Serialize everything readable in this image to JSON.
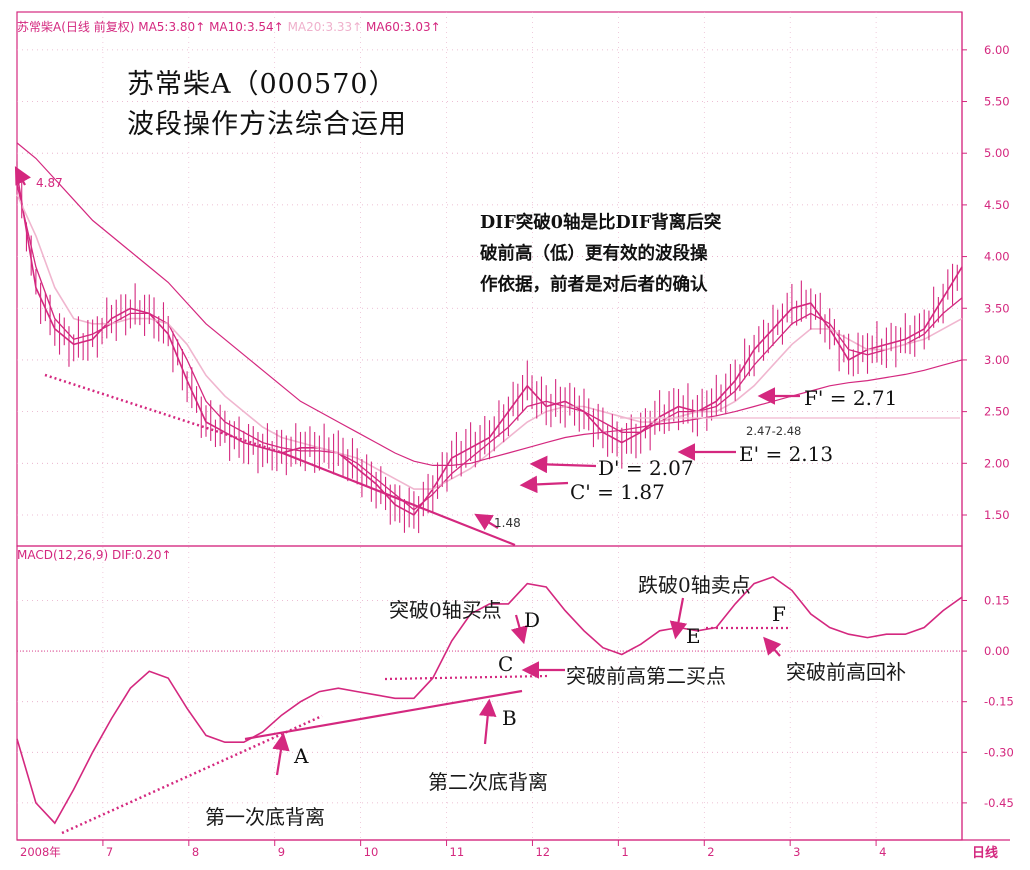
{
  "header": {
    "stock": "苏常柴A(日线 前复权)",
    "ma5": "MA5:3.80",
    "ma10": "MA10:3.54",
    "ma20": "MA20:3.33",
    "ma60": "MA60:3.03"
  },
  "macd_header": {
    "name": "MACD(12,26,9)",
    "dif": "DIF:0.20"
  },
  "title_line1": "苏常柴A（000570）",
  "title_line2": "波段操作方法综合运用",
  "note_lines": [
    "DIF突破0轴是比DIF背离后突",
    "破前高（低）更有效的波段操",
    "作依据，前者是对后者的确认"
  ],
  "price_labels": {
    "high": "4.87",
    "low": "1.48",
    "c_prime": "C' = 1.87",
    "d_prime": "D' = 2.07",
    "e_prime": "E' = 2.13",
    "f_prime": "F' = 2.71",
    "range": "2.47-2.48"
  },
  "macd_labels": {
    "a": "A",
    "b": "B",
    "c": "C",
    "d": "D",
    "e": "E",
    "f": "F",
    "first_div": "第一次底背离",
    "second_div": "第二次底背离",
    "break_zero_buy": "突破0轴买点",
    "break_high_second": "突破前高第二买点",
    "break_zero_sell": "跌破0轴卖点",
    "break_high_fill": "突破前高回补"
  },
  "period_label": "日线",
  "colors": {
    "accent": "#d4287f",
    "ma_light": "#f0b6cf",
    "grid": "#e7a9c6"
  },
  "chart_data": [
    {
      "type": "line",
      "name": "price-panel",
      "y_ticks": [
        "1.50",
        "2.00",
        "2.50",
        "3.00",
        "3.50",
        "4.00",
        "4.50",
        "5.00",
        "5.50",
        "6.00"
      ],
      "ylim": [
        1.2,
        6.25
      ],
      "x": [
        0,
        4,
        8,
        12,
        16,
        20,
        24,
        28,
        32,
        36,
        40,
        44,
        48,
        52,
        56,
        60,
        64,
        68,
        72,
        76,
        80,
        84,
        88,
        92,
        96,
        100,
        104,
        108,
        112,
        116,
        120,
        124,
        128,
        132,
        136,
        140,
        144,
        148,
        152,
        156,
        160,
        164,
        168,
        172,
        176,
        180,
        184,
        188,
        192,
        196,
        200
      ],
      "series": [
        {
          "name": "MA5",
          "values": [
            4.8,
            3.7,
            3.3,
            3.15,
            3.2,
            3.4,
            3.5,
            3.45,
            3.25,
            2.8,
            2.4,
            2.3,
            2.2,
            2.15,
            2.1,
            2.15,
            2.15,
            2.1,
            1.95,
            1.8,
            1.6,
            1.5,
            1.75,
            2.05,
            2.15,
            2.25,
            2.5,
            2.75,
            2.55,
            2.6,
            2.5,
            2.3,
            2.2,
            2.3,
            2.45,
            2.55,
            2.5,
            2.6,
            2.8,
            3.1,
            3.3,
            3.5,
            3.55,
            3.3,
            3.0,
            3.1,
            3.15,
            3.2,
            3.3,
            3.6,
            3.9
          ]
        },
        {
          "name": "MA10",
          "values": [
            4.7,
            3.9,
            3.4,
            3.2,
            3.25,
            3.35,
            3.45,
            3.45,
            3.35,
            3.0,
            2.6,
            2.4,
            2.3,
            2.2,
            2.15,
            2.12,
            2.12,
            2.1,
            2.0,
            1.85,
            1.7,
            1.55,
            1.7,
            1.9,
            2.05,
            2.2,
            2.35,
            2.55,
            2.6,
            2.55,
            2.5,
            2.4,
            2.3,
            2.3,
            2.4,
            2.5,
            2.5,
            2.55,
            2.7,
            2.95,
            3.15,
            3.35,
            3.45,
            3.35,
            3.1,
            3.05,
            3.1,
            3.15,
            3.25,
            3.45,
            3.6
          ]
        },
        {
          "name": "MA20",
          "values": [
            4.6,
            4.2,
            3.7,
            3.4,
            3.35,
            3.35,
            3.4,
            3.4,
            3.35,
            3.15,
            2.85,
            2.65,
            2.5,
            2.35,
            2.25,
            2.2,
            2.15,
            2.1,
            2.05,
            1.95,
            1.85,
            1.75,
            1.75,
            1.85,
            1.95,
            2.1,
            2.25,
            2.4,
            2.5,
            2.55,
            2.55,
            2.5,
            2.45,
            2.4,
            2.4,
            2.45,
            2.5,
            2.5,
            2.6,
            2.75,
            2.95,
            3.15,
            3.3,
            3.3,
            3.2,
            3.1,
            3.1,
            3.15,
            3.2,
            3.3,
            3.4
          ]
        },
        {
          "name": "MA60",
          "values": [
            5.1,
            4.95,
            4.75,
            4.55,
            4.35,
            4.2,
            4.05,
            3.9,
            3.75,
            3.55,
            3.35,
            3.2,
            3.05,
            2.9,
            2.75,
            2.6,
            2.5,
            2.4,
            2.3,
            2.2,
            2.1,
            2.02,
            1.98,
            1.98,
            2.0,
            2.05,
            2.1,
            2.15,
            2.2,
            2.25,
            2.28,
            2.3,
            2.32,
            2.35,
            2.38,
            2.4,
            2.43,
            2.46,
            2.5,
            2.55,
            2.6,
            2.65,
            2.7,
            2.75,
            2.78,
            2.8,
            2.83,
            2.86,
            2.9,
            2.95,
            3.0
          ]
        }
      ]
    },
    {
      "type": "line",
      "name": "macd-panel",
      "y_ticks": [
        "-0.45",
        "-0.30",
        "-0.15",
        "0.00",
        "0.15"
      ],
      "ylim": [
        -0.56,
        0.27
      ],
      "x_ticks": [
        "2008年",
        "7",
        "8",
        "9",
        "10",
        "11",
        "12",
        "1",
        "2",
        "3",
        "4"
      ],
      "x": [
        0,
        4,
        8,
        12,
        16,
        20,
        24,
        28,
        32,
        36,
        40,
        44,
        48,
        52,
        56,
        60,
        64,
        68,
        72,
        76,
        80,
        84,
        88,
        92,
        96,
        100,
        104,
        108,
        112,
        116,
        120,
        124,
        128,
        132,
        136,
        140,
        144,
        148,
        152,
        156,
        160,
        164,
        168,
        172,
        176,
        180,
        184,
        188,
        192,
        196,
        200
      ],
      "series": [
        {
          "name": "DIF",
          "values": [
            -0.26,
            -0.45,
            -0.51,
            -0.41,
            -0.3,
            -0.2,
            -0.11,
            -0.06,
            -0.08,
            -0.17,
            -0.25,
            -0.27,
            -0.27,
            -0.24,
            -0.19,
            -0.15,
            -0.12,
            -0.11,
            -0.12,
            -0.13,
            -0.14,
            -0.14,
            -0.08,
            0.03,
            0.11,
            0.14,
            0.14,
            0.2,
            0.19,
            0.12,
            0.06,
            0.01,
            -0.01,
            0.02,
            0.06,
            0.07,
            0.06,
            0.07,
            0.14,
            0.2,
            0.22,
            0.18,
            0.11,
            0.07,
            0.05,
            0.04,
            0.05,
            0.05,
            0.07,
            0.12,
            0.16
          ]
        }
      ]
    }
  ]
}
